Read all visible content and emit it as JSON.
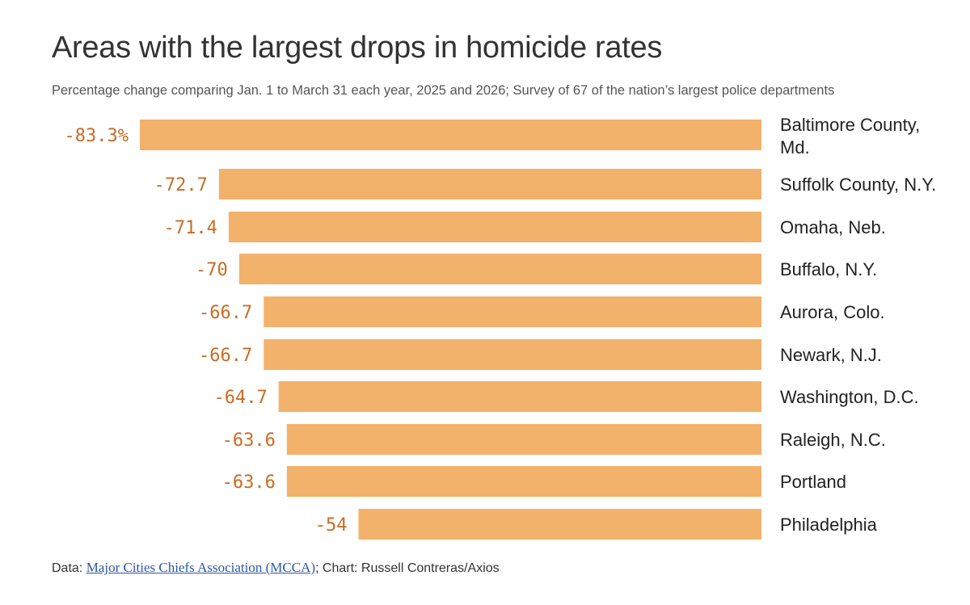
{
  "header": {
    "title": "Areas with the largest drops in homicide rates",
    "subtitle": "Percentage change comparing Jan. 1 to March 31 each year, 2025 and 2026; Survey of 67 of the nation’s largest police departments"
  },
  "footer": {
    "prefix": "Data: ",
    "link_text": "Major Cities Chiefs Association (MCCA)",
    "suffix": "; Chart: Russell Contreras/Axios"
  },
  "colors": {
    "bar": "#f2b26b",
    "value_label": "#c86d25",
    "text": "#222222",
    "link": "#2a57a8"
  },
  "chart_data": {
    "type": "bar",
    "orientation": "horizontal",
    "categories": [
      [
        "Baltimore County,",
        "Md."
      ],
      [
        "Suffolk County, N.Y."
      ],
      [
        "Omaha, Neb."
      ],
      [
        "Buffalo, N.Y."
      ],
      [
        "Aurora, Colo."
      ],
      [
        "Newark, N.J."
      ],
      [
        "Washington, D.C."
      ],
      [
        "Raleigh, N.C."
      ],
      [
        "Portland"
      ],
      [
        "Philadelphia"
      ]
    ],
    "values": [
      -83.3,
      -72.7,
      -71.4,
      -70,
      -66.7,
      -66.7,
      -64.7,
      -63.6,
      -63.6,
      -54
    ],
    "value_labels": [
      "-83.3%",
      "-72.7",
      "-71.4",
      "-70",
      "-66.7",
      "-66.7",
      "-64.7",
      "-63.6",
      "-63.6",
      "-54"
    ],
    "xlim": [
      -83.3,
      0
    ],
    "grid": false,
    "legend": "none"
  }
}
